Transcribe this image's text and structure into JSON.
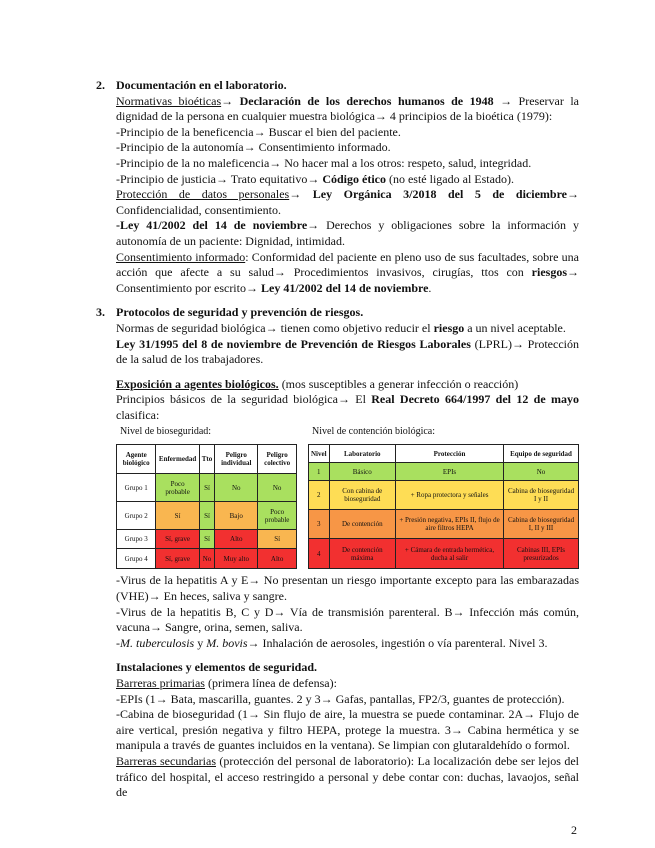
{
  "colors": {
    "green": "#a9e05f",
    "orange": "#f9b650",
    "red": "#f23030",
    "yellow": "#fedd55",
    "dark_orange": "#f79646"
  },
  "section2": {
    "number": "2.",
    "title": "Documentación en el laboratorio.",
    "paragraphs": [
      [
        {
          "t": "Normativas bioéticas",
          "s": "u"
        },
        {
          "t": "→ ",
          "s": ""
        },
        {
          "t": "Declaración de los derechos humanos de 1948",
          "s": "b"
        },
        {
          "t": " → Preservar la dignidad de la persona en cualquier muestra biológica→ 4 principios de la bioética (1979):",
          "s": ""
        }
      ],
      [
        {
          "t": "-Principio de la beneficencia→ Buscar el bien del paciente.",
          "s": ""
        }
      ],
      [
        {
          "t": "-Principio de la autonomía→ Consentimiento informado.",
          "s": ""
        }
      ],
      [
        {
          "t": "-Principio de la no maleficencia→ No hacer mal a los otros: respeto, salud, integridad.",
          "s": ""
        }
      ],
      [
        {
          "t": "-Principio de justicia→ Trato equitativo→ ",
          "s": ""
        },
        {
          "t": "Código ético",
          "s": "b"
        },
        {
          "t": " (no esté ligado al Estado).",
          "s": ""
        }
      ],
      [
        {
          "t": "Protección de datos personales",
          "s": "u"
        },
        {
          "t": "→ ",
          "s": ""
        },
        {
          "t": "Ley Orgánica 3/2018 del 5 de diciembre",
          "s": "b"
        },
        {
          "t": "→ Confidencialidad, consentimiento.",
          "s": ""
        }
      ],
      [
        {
          "t": "-Ley 41/2002 del 14 de noviembre",
          "s": "b"
        },
        {
          "t": "→ Derechos y obligaciones sobre la información y autonomía de un paciente: Dignidad, intimidad.",
          "s": ""
        }
      ],
      [
        {
          "t": "Consentimiento informado",
          "s": "u"
        },
        {
          "t": ": Conformidad del paciente en pleno uso de sus facultades, sobre una acción que afecte a su salud→ Procedimientos invasivos, cirugías, ttos con ",
          "s": ""
        },
        {
          "t": "riesgos",
          "s": "b"
        },
        {
          "t": "→ Consentimiento por escrito→ ",
          "s": ""
        },
        {
          "t": "Ley 41/2002 del 14 de noviembre",
          "s": "b"
        },
        {
          "t": ".",
          "s": ""
        }
      ]
    ]
  },
  "section3": {
    "number": "3.",
    "title": "Protocolos de seguridad y prevención de riesgos.",
    "paragraphs": [
      [
        {
          "t": "Normas de seguridad biológica→ tienen como objetivo reducir el ",
          "s": ""
        },
        {
          "t": "riesgo",
          "s": "b"
        },
        {
          "t": " a un nivel aceptable.",
          "s": ""
        }
      ],
      [
        {
          "t": "Ley 31/1995 del 8 de noviembre de Prevención de Riesgos Laborales",
          "s": "b"
        },
        {
          "t": " (LPRL)→ Protección de la salud de los trabajadores.",
          "s": ""
        }
      ]
    ],
    "exposure": [
      [
        {
          "t": "Exposición a agentes biológicos.",
          "s": "b u"
        },
        {
          "t": " (mos susceptibles a generar infección o reacción)",
          "s": ""
        }
      ],
      [
        {
          "t": "Principios básicos de la seguridad biológica→ El ",
          "s": ""
        },
        {
          "t": "Real Decreto 664/1997 del 12 de mayo",
          "s": "b"
        },
        {
          "t": " clasifica:",
          "s": ""
        }
      ]
    ]
  },
  "biosafety_table": {
    "label": "Nivel de bioseguridad:",
    "headers": [
      "Agente biológico",
      "Enfermedad",
      "Tto",
      "Peligro individual",
      "Peligro colectivo"
    ],
    "rows": [
      {
        "cells": [
          "Grupo 1",
          "Poco probable",
          "Sí",
          "No",
          "No"
        ],
        "colors": [
          "",
          "green",
          "green",
          "green",
          "green"
        ]
      },
      {
        "cells": [
          "Grupo 2",
          "Sí",
          "Sí",
          "Bajo",
          "Poco probable"
        ],
        "colors": [
          "",
          "orange",
          "green",
          "orange",
          "green"
        ]
      },
      {
        "cells": [
          "Grupo 3",
          "Sí, grave",
          "Sí",
          "Alto",
          "Sí"
        ],
        "colors": [
          "",
          "red",
          "green",
          "red",
          "orange"
        ]
      },
      {
        "cells": [
          "Grupo 4",
          "Sí, grave",
          "No",
          "Muy alto",
          "Alto"
        ],
        "colors": [
          "",
          "red",
          "red",
          "red",
          "red"
        ]
      }
    ]
  },
  "containment_table": {
    "label": "Nivel de contención biológica:",
    "headers": [
      "Nivel",
      "Laboratorio",
      "Protección",
      "Equipo de seguridad"
    ],
    "rows": [
      {
        "cells": [
          "1",
          "Básico",
          "EPIs",
          "No"
        ],
        "color": "green"
      },
      {
        "cells": [
          "2",
          "Con cabina de bioseguridad",
          "+ Ropa protectora y señales",
          "Cabina de bioseguridad I y II"
        ],
        "color": "yellow"
      },
      {
        "cells": [
          "3",
          "De contención",
          "+ Presión negativa, EPIs II, flujo de aire filtros HEPA",
          "Cabina de bioseguridad I, II y III"
        ],
        "color": "dark_orange"
      },
      {
        "cells": [
          "4",
          "De contención máxima",
          "+ Cámara de entrada hermética, ducha al salir",
          "Cabinas III, EPIs presurizados"
        ],
        "color": "red"
      }
    ]
  },
  "viruses": [
    [
      {
        "t": "-Virus de la hepatitis A y E→ No presentan un riesgo importante excepto para las embarazadas (VHE)→ En heces, saliva y sangre.",
        "s": ""
      }
    ],
    [
      {
        "t": "-Virus de la hepatitis B, C y D→ Vía de transmisión parenteral. B→ Infección más común, vacuna→ Sangre, orina, semen, saliva.",
        "s": ""
      }
    ],
    [
      {
        "t": "-",
        "s": ""
      },
      {
        "t": "M. tuberculosis",
        "s": "i"
      },
      {
        "t": " y ",
        "s": ""
      },
      {
        "t": "M. bovis",
        "s": "i"
      },
      {
        "t": "→ Inhalación de aerosoles, ingestión o vía parenteral. Nivel 3.",
        "s": ""
      }
    ]
  ],
  "facilities": {
    "title": "Instalaciones y elementos de seguridad.",
    "paragraphs": [
      [
        {
          "t": "Barreras primarias",
          "s": "u"
        },
        {
          "t": " (primera línea de defensa):",
          "s": ""
        }
      ],
      [
        {
          "t": "-EPIs (1→ Bata, mascarilla, guantes. 2 y 3→ Gafas, pantallas, FP2/3, guantes de protección).",
          "s": ""
        }
      ],
      [
        {
          "t": "-Cabina de bioseguridad (1→ Sin flujo de aire, la muestra se puede contaminar. 2A→ Flujo de aire vertical, presión negativa y filtro HEPA, protege la muestra. 3→ Cabina hermética y se manipula a través de guantes incluidos en la ventana). Se limpian con glutaraldehído o formol.",
          "s": ""
        }
      ],
      [
        {
          "t": "Barreras secundarias",
          "s": "u"
        },
        {
          "t": " (protección del personal de laboratorio): La localización debe ser lejos del tráfico del hospital, el acceso restringido a personal y debe contar con: duchas, lavaojos, señal de",
          "s": ""
        }
      ]
    ]
  },
  "page_number": "2"
}
